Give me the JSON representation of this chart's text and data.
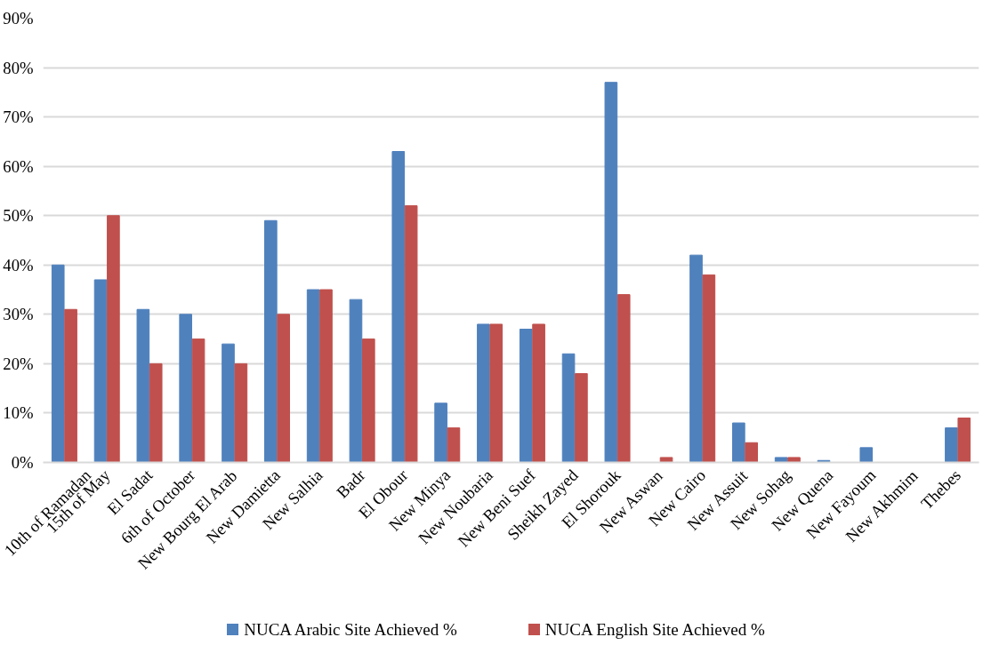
{
  "chart_data": {
    "type": "bar",
    "categories": [
      "10th of Ramadan",
      "15th of May",
      "El Sadat",
      "6th of October",
      "New Bourg El Arab",
      "New Damietta",
      "New Salhia",
      "Badr",
      "El Obour",
      "New Minya",
      "New Noubaria",
      "New Beni Suef",
      "Sheikh Zayed",
      "El Shorouk",
      "New Aswan",
      "New Cairo",
      "New Assuit",
      "New Sohag",
      "New Quena",
      "New Fayoum",
      "New Akhmim",
      "Thebes"
    ],
    "series": [
      {
        "name": "NUCA Arabic Site Achieved %",
        "color": "#4f81bd",
        "values": [
          40,
          37,
          31,
          30,
          24,
          49,
          35,
          33,
          63,
          12,
          28,
          27,
          22,
          77,
          0,
          42,
          8,
          1,
          0.4,
          3,
          null,
          7
        ]
      },
      {
        "name": "NUCA English Site Achieved %",
        "color": "#c0504d",
        "values": [
          31,
          50,
          20,
          25,
          20,
          30,
          35,
          25,
          52,
          7,
          28,
          28,
          18,
          34,
          1,
          38,
          4,
          1,
          0,
          0,
          0,
          9
        ]
      }
    ],
    "ylim": [
      0,
      90
    ],
    "yticks": [
      {
        "value": 0,
        "label": "0%"
      },
      {
        "value": 10,
        "label": "10%"
      },
      {
        "value": 20,
        "label": "20%"
      },
      {
        "value": 30,
        "label": "30%"
      },
      {
        "value": 40,
        "label": "40%"
      },
      {
        "value": 50,
        "label": "50%"
      },
      {
        "value": 60,
        "label": "60%"
      },
      {
        "value": 70,
        "label": "70%"
      },
      {
        "value": 80,
        "label": "80%"
      },
      {
        "value": 90,
        "label": "90%"
      }
    ],
    "grid": "y",
    "legend": "bottom"
  }
}
